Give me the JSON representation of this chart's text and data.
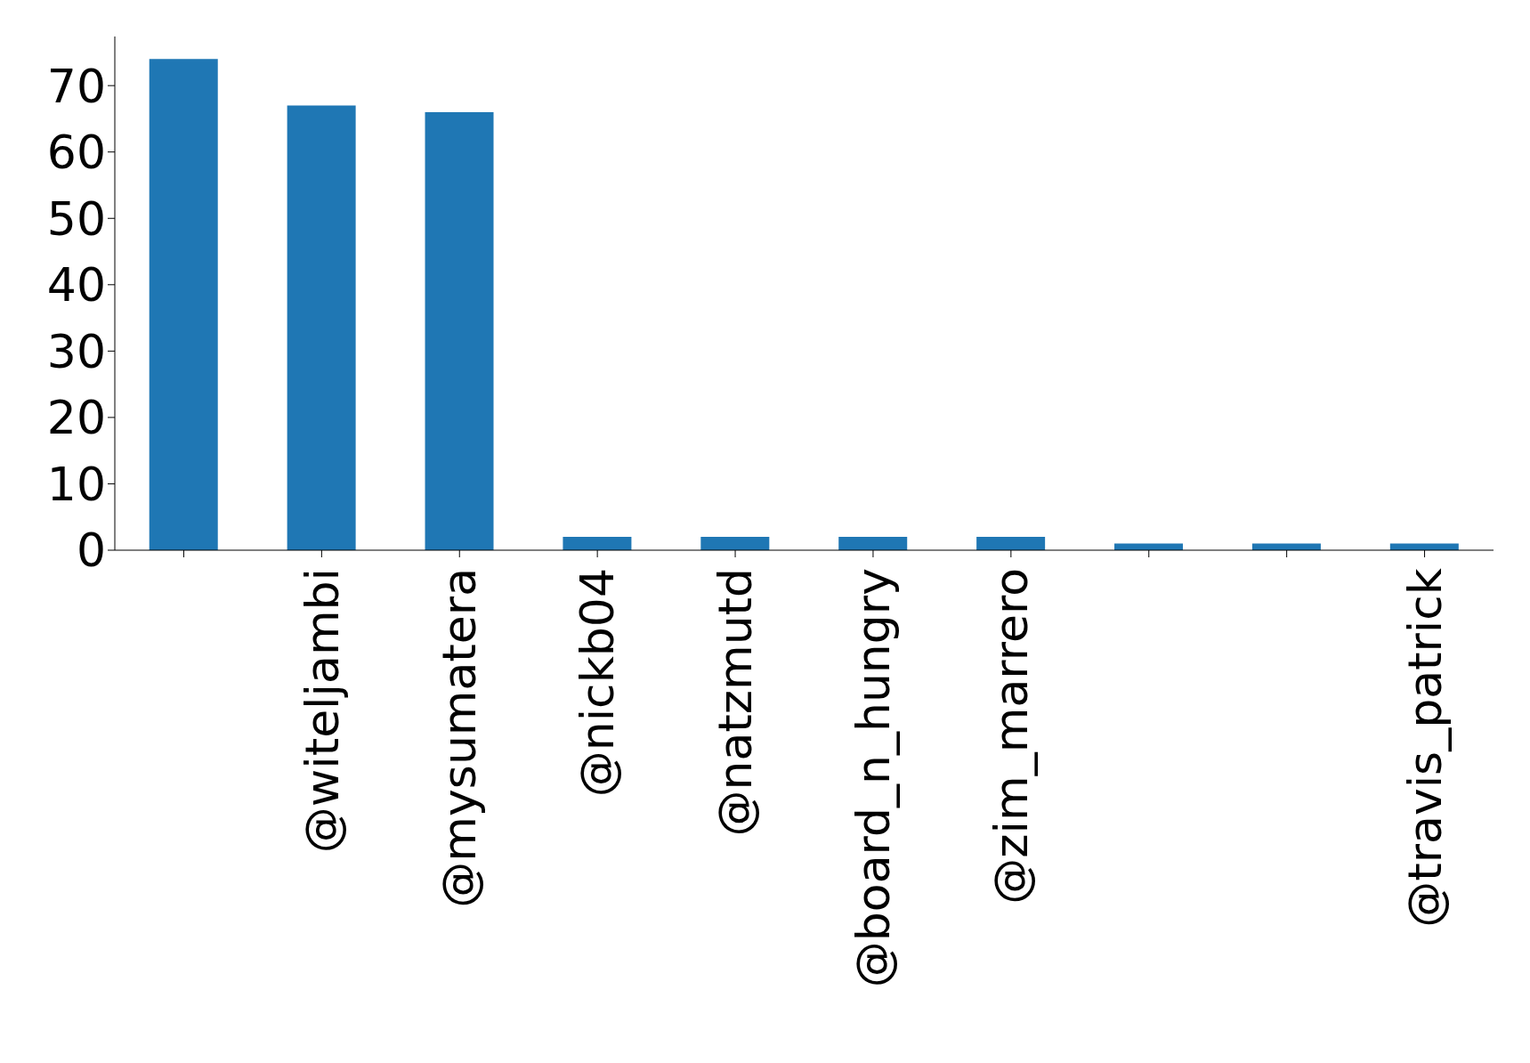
{
  "chart_data": {
    "type": "bar",
    "categories": [
      null,
      "@witeljambi",
      "@mysumatera",
      "@nickb04",
      "@natzmutd",
      "@board_n_hungry",
      "@zim_marrero",
      null,
      null,
      "@travis_patrick"
    ],
    "values": [
      74,
      67,
      66,
      2,
      2,
      2,
      2,
      1,
      1,
      1
    ],
    "color": "#1f77b4",
    "ylim": [
      0,
      77.4
    ],
    "yticks": [
      0,
      10,
      20,
      30,
      40,
      50,
      60,
      70
    ],
    "grid": false,
    "legend": false
  }
}
